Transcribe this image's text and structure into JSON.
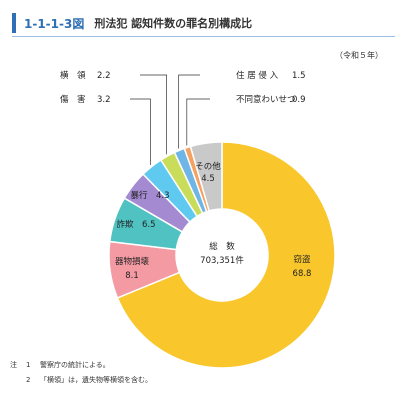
{
  "header": {
    "figure_number": "1-1-1-3図",
    "title": "刑法犯 認知件数の罪名別構成比",
    "era": "（令和５年）"
  },
  "chart_data": {
    "type": "pie",
    "title": "刑法犯 認知件数の罪名別構成比",
    "center_label": "総　数",
    "center_value": "703,351件",
    "slices": [
      {
        "name": "窃盗",
        "value": 68.8,
        "color": "#f9c62c"
      },
      {
        "name": "器物損壊",
        "value": 8.1,
        "color": "#f39aa3"
      },
      {
        "name": "詐欺",
        "value": 6.5,
        "color": "#4fc2c1"
      },
      {
        "name": "暴行",
        "value": 4.3,
        "color": "#a48ad0"
      },
      {
        "name": "傷　害",
        "value": 3.2,
        "color": "#5fc9ef"
      },
      {
        "name": "横　領",
        "value": 2.2,
        "color": "#c9dd5b"
      },
      {
        "name": "住 居 侵 入",
        "value": 1.5,
        "color": "#6fb5e6"
      },
      {
        "name": "不同意わいせつ",
        "value": 0.9,
        "color": "#f4a262"
      },
      {
        "name": "その他",
        "value": 4.5,
        "color": "#c9c9c9"
      }
    ]
  },
  "notes": [
    {
      "mark": "注",
      "num": "1",
      "text": "警察庁の統計による。"
    },
    {
      "mark": "",
      "num": "2",
      "text": "「横領」は，遺失物等横領を含む。"
    }
  ]
}
